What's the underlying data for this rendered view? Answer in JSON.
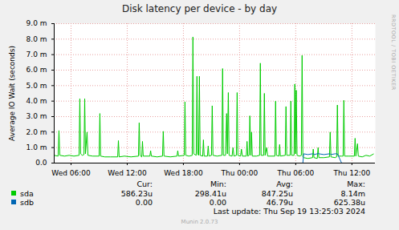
{
  "chart_data": {
    "type": "line",
    "title": "Disk latency per device - by day",
    "ylabel": "Average IO Wait (seconds)",
    "x": [
      4.2,
      4.62,
      4.71,
      4.8,
      5.3,
      5.8,
      6.3,
      6.86,
      6.94,
      7.02,
      7.2,
      7.38,
      7.46,
      7.54,
      7.71,
      7.8,
      8.3,
      9.0,
      9.08,
      9.16,
      9.6,
      10.2,
      10.98,
      11.06,
      11.14,
      11.7,
      12.4,
      13.2,
      13.28,
      13.36,
      13.55,
      13.63,
      13.71,
      14.42,
      14.5,
      14.58,
      15.2,
      15.77,
      15.85,
      15.93,
      16.6,
      17.32,
      17.4,
      17.48,
      18.09,
      18.17,
      18.25,
      18.6,
      18.94,
      19.02,
      19.1,
      19.37,
      19.45,
      19.53,
      19.63,
      19.71,
      19.79,
      20.06,
      20.14,
      20.22,
      20.57,
      20.65,
      20.73,
      21.0,
      21.08,
      21.16,
      21.6,
      22.11,
      22.19,
      22.27,
      22.5,
      22.62,
      22.7,
      22.8,
      22.88,
      23.2,
      23.3,
      23.4,
      23.66,
      23.74,
      23.82,
      24.1,
      24.2,
      24.3,
      24.72,
      24.8,
      24.88,
      25.02,
      25.1,
      25.2,
      25.28,
      25.36,
      25.8,
      26.14,
      26.22,
      26.3,
      26.57,
      26.65,
      26.73,
      26.9,
      27.0,
      27.77,
      27.85,
      27.93,
      28.2,
      28.28,
      28.36,
      28.88,
      28.96,
      29.04,
      29.4,
      29.48,
      29.56,
      29.82,
      29.9,
      29.98,
      30.06,
      30.14,
      30.4,
      30.6,
      30.68,
      30.76,
      30.85,
      31.3,
      31.8,
      31.87,
      31.95,
      32.3,
      32.39,
      32.47,
      33.0,
      33.6,
      33.68,
      33.76,
      34.2,
      34.37,
      34.45,
      34.53,
      34.9,
      35.06,
      35.14,
      35.22,
      35.7,
      36.26,
      36.34,
      36.42,
      36.6,
      36.68,
      37.1,
      37.5,
      37.9,
      38.2,
      38.3
    ],
    "series": [
      {
        "name": "sda",
        "color": "#00cc00",
        "stats": [
          "586.23u",
          "298.41u",
          "847.25u",
          "8.14m"
        ],
        "values": [
          0.0005,
          0.00045,
          0.0021,
          0.0005,
          0.00045,
          0.0005,
          0.00045,
          0.0005,
          0.00415,
          0.0006,
          0.0005,
          0.00055,
          0.00415,
          0.0006,
          0.002,
          0.0005,
          0.00045,
          0.00045,
          0.0032,
          0.00045,
          0.0004,
          0.0004,
          0.0004,
          0.00145,
          0.0004,
          0.00045,
          0.0004,
          0.00045,
          0.0026,
          0.0005,
          0.0004,
          0.0014,
          0.00045,
          0.00045,
          0.0008,
          0.00045,
          0.0004,
          0.00045,
          0.00205,
          0.00045,
          0.0004,
          0.00045,
          0.0008,
          0.00045,
          0.0005,
          0.00395,
          0.0005,
          0.00045,
          0.0005,
          0.00814,
          0.0006,
          0.0005,
          0.0056,
          0.0006,
          0.0005,
          0.0056,
          0.0005,
          0.00045,
          0.0015,
          0.00045,
          0.00045,
          0.0011,
          0.00045,
          0.0005,
          0.0037,
          0.0005,
          0.00045,
          0.0005,
          0.0061,
          0.0005,
          0.0005,
          0.0032,
          0.0006,
          0.00455,
          0.0005,
          0.00045,
          0.001,
          0.00045,
          0.0005,
          0.00455,
          0.0005,
          0.00045,
          0.0009,
          0.00045,
          0.00045,
          0.0014,
          0.00045,
          0.0005,
          0.00305,
          0.0005,
          0.002,
          0.00045,
          0.00045,
          0.0005,
          0.00645,
          0.0005,
          0.0005,
          0.0045,
          0.0005,
          0.001,
          0.00045,
          0.00045,
          0.004,
          0.0005,
          0.00045,
          0.0012,
          0.00045,
          0.0005,
          0.00365,
          0.0005,
          0.0005,
          0.004,
          0.0005,
          0.0005,
          0.0051,
          0.0006,
          0.0047,
          0.0005,
          0.00045,
          0.0005,
          0.00695,
          0.0004,
          0.00035,
          0.00029841,
          0.00035,
          0.0009,
          0.00035,
          0.0003,
          0.001,
          0.00035,
          0.00035,
          0.0004,
          0.002,
          0.0004,
          0.00035,
          0.0004,
          0.00375,
          0.00045,
          0.00045,
          0.00045,
          0.00405,
          0.00045,
          0.00045,
          0.00045,
          0.0016,
          0.00045,
          0.00125,
          0.00045,
          0.0004,
          0.0005,
          0.00045,
          0.00055,
          0.00058623
        ]
      },
      {
        "name": "sdb",
        "color": "#0066b3",
        "stats": [
          "0.00",
          "0.00",
          "46.79u",
          "625.38u"
        ],
        "values": [
          0,
          0,
          0,
          0,
          0,
          0,
          0,
          0,
          0,
          0,
          0,
          0,
          0,
          0,
          0,
          0,
          0,
          0,
          0,
          0,
          0,
          0,
          0,
          0,
          0,
          0,
          0,
          0,
          0,
          0,
          0,
          0,
          0,
          0,
          0,
          0,
          0,
          0,
          0,
          0,
          0,
          0,
          0,
          0,
          0,
          0,
          0,
          0,
          0,
          0,
          0,
          0,
          0,
          0,
          0,
          0,
          0,
          0,
          0,
          0,
          0,
          0,
          0,
          0,
          0,
          0,
          0,
          0,
          0,
          0,
          0,
          0,
          0,
          0,
          0,
          0,
          0,
          0,
          0,
          0,
          0,
          0,
          0,
          0,
          0,
          0,
          0,
          0,
          0,
          0,
          0,
          0,
          0,
          0,
          0,
          0,
          0,
          0,
          0,
          0,
          0,
          0,
          0,
          0,
          0,
          0,
          0,
          0,
          0,
          0,
          0,
          0,
          0,
          0,
          0,
          0,
          0,
          0,
          0,
          0,
          0,
          0,
          0.0006,
          0.00055,
          0.0006,
          0.0006,
          0.00055,
          0.0006,
          0.000625,
          0.0006,
          0.00055,
          0.0006,
          0.0006,
          0.00055,
          0.0006,
          0.0006,
          0.0006,
          0.0005,
          0,
          0,
          0,
          0,
          0,
          0,
          0,
          0,
          0,
          0,
          0,
          0,
          0,
          0,
          0
        ]
      }
    ],
    "xlim": [
      4.2,
      38.5
    ],
    "xticks": [
      {
        "value": 6,
        "label": "Wed 06:00"
      },
      {
        "value": 12,
        "label": "Wed 12:00"
      },
      {
        "value": 18,
        "label": "Wed 18:00"
      },
      {
        "value": 24,
        "label": "Thu 00:00"
      },
      {
        "value": 30,
        "label": "Thu 06:00"
      },
      {
        "value": 36,
        "label": "Thu 12:00"
      }
    ],
    "ylim": [
      0,
      0.009
    ],
    "yticks": [
      {
        "value": 0,
        "label": "0.0"
      },
      {
        "value": 0.001,
        "label": "1.0 m"
      },
      {
        "value": 0.002,
        "label": "2.0 m"
      },
      {
        "value": 0.003,
        "label": "3.0 m"
      },
      {
        "value": 0.004,
        "label": "4.0 m"
      },
      {
        "value": 0.005,
        "label": "5.0 m"
      },
      {
        "value": 0.006,
        "label": "6.0 m"
      },
      {
        "value": 0.007,
        "label": "7.0 m"
      },
      {
        "value": 0.008,
        "label": "8.0 m"
      },
      {
        "value": 0.009,
        "label": "9.0 m"
      }
    ],
    "grid": true,
    "legend": "bottom",
    "stat_labels": [
      "Cur:",
      "Min:",
      "Avg:",
      "Max:"
    ],
    "footer": "Last update: Thu Sep 19 13:25:03 2024",
    "credit": "Munin 2.0.73",
    "watermark": "RRDTOOL / TOBI OETIKER"
  }
}
